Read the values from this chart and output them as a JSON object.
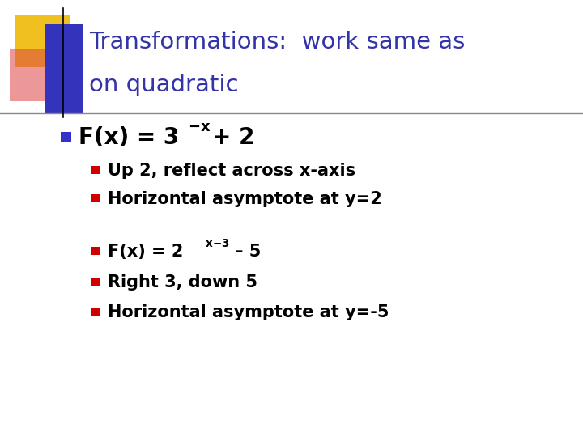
{
  "title_line1": "Transformations:  work same as",
  "title_line2": "on quadratic",
  "title_color": "#3333aa",
  "background_color": "#ffffff",
  "bullet_blue_color": "#3333cc",
  "bullet_red_color": "#cc0000",
  "sub_bullets1": [
    "Up 2, reflect across x-axis",
    "Horizontal asymptote at y=2"
  ],
  "sub_bullets2": [
    "Right 3, down 5",
    "Horizontal asymptote at y=-5"
  ],
  "divider_color": "#888888",
  "square_yellow": "#f0c020",
  "square_blue": "#3333bb",
  "square_red": "#dd4444",
  "title_fontsize": 21,
  "main_bullet_fontsize": 20,
  "sub_bullet_fontsize": 15
}
